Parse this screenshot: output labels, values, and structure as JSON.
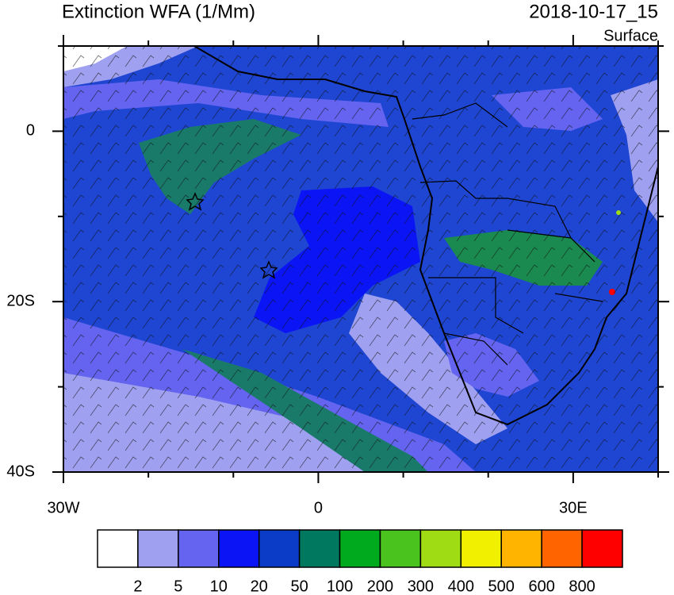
{
  "title": "Extinction WFA (1/Mm)",
  "time": "2018-10-17_15",
  "level": "Surface",
  "map": {
    "xlim": [
      -30,
      40
    ],
    "ylim": [
      -40,
      10
    ],
    "xticks": [
      {
        "value": -30,
        "label": "30W"
      },
      0,
      {
        "value": 30,
        "label": "30E"
      }
    ],
    "yticks": [
      {
        "value": -40,
        "label": "40S"
      },
      {
        "value": -20,
        "label": "20S"
      },
      0
    ],
    "minor_xticks": [
      -20,
      -10,
      10,
      20,
      40
    ],
    "minor_yticks": [
      -30,
      -10,
      10
    ]
  },
  "colorbar": {
    "colors": [
      "#ffffff",
      "#a0a0f0",
      "#6464f0",
      "#0a14f5",
      "#0a3cc8",
      "#007860",
      "#00aa1e",
      "#4bc31e",
      "#a0dc14",
      "#f0f000",
      "#ffb400",
      "#ff6400",
      "#ff0000"
    ],
    "labels": [
      2,
      5,
      10,
      20,
      50,
      100,
      200,
      300,
      400,
      500,
      600,
      800
    ]
  }
}
